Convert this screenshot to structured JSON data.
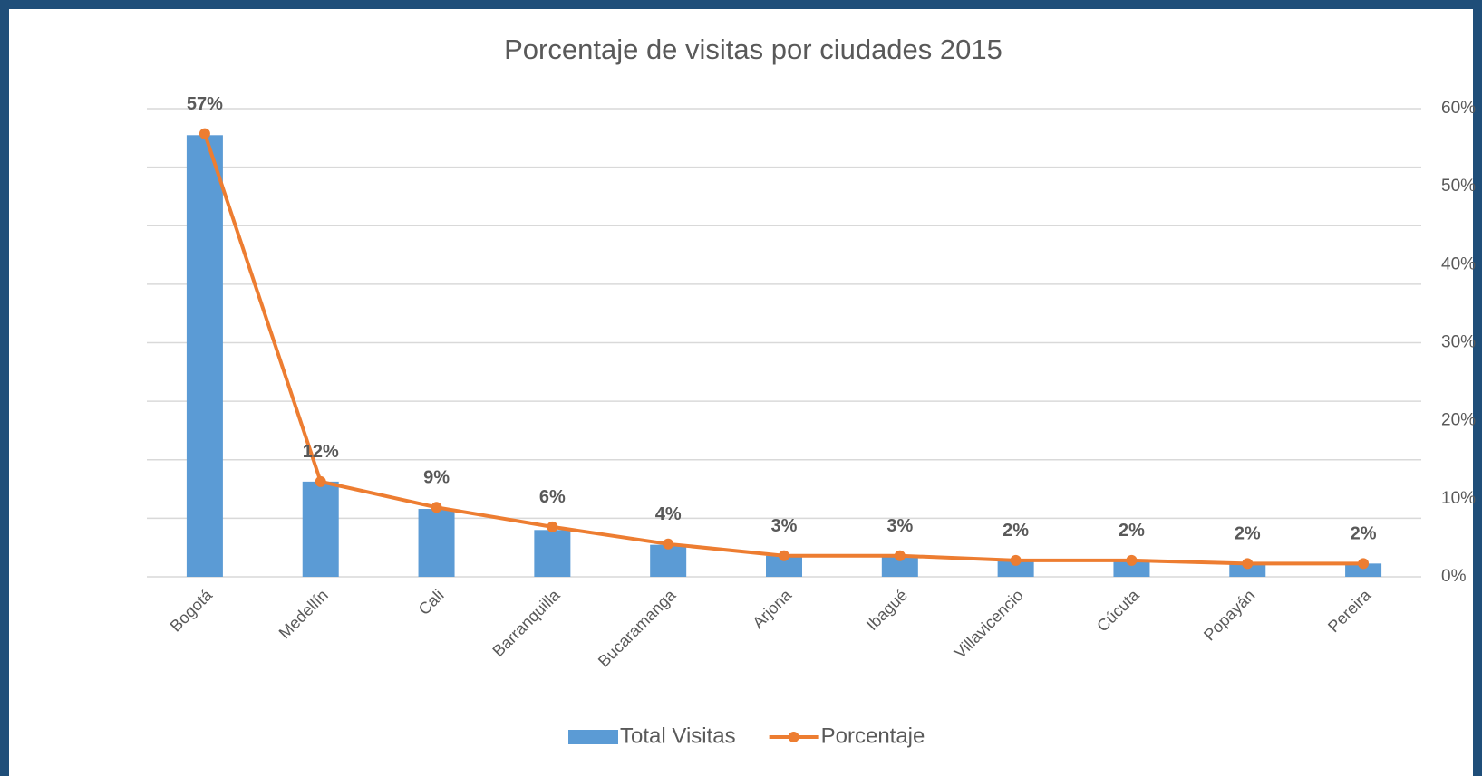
{
  "chart_data": {
    "type": "combo",
    "title": "Porcentaje de visitas por ciudades 2015",
    "categories": [
      "Bogotá",
      "Medellín",
      "Cali",
      "Barranquilla",
      "Bucaramanga",
      "Arjona",
      "Ibagué",
      "Villavicencio",
      "Cúcuta",
      "Popayán",
      "Pereira"
    ],
    "ylim": [
      0,
      60
    ],
    "ygrid": [
      0,
      7.5,
      15,
      22.5,
      30,
      37.5,
      45,
      52.5,
      60
    ],
    "y2lim": [
      0,
      60
    ],
    "y2ticks": [
      {
        "value": 0,
        "label": "0%"
      },
      {
        "value": 10,
        "label": "10%"
      },
      {
        "value": 20,
        "label": "20%"
      },
      {
        "value": 30,
        "label": "30%"
      },
      {
        "value": 40,
        "label": "40%"
      },
      {
        "value": 50,
        "label": "50%"
      },
      {
        "value": 60,
        "label": "60%"
      }
    ],
    "legend": "bottom",
    "series": [
      {
        "name": "Total Visitas",
        "type": "bar",
        "color": "#5b9bd5",
        "values": [
          56.6,
          12.2,
          8.7,
          6.0,
          4.1,
          2.7,
          2.7,
          2.1,
          2.1,
          1.7,
          1.7
        ]
      },
      {
        "name": "Porcentaje",
        "type": "line",
        "axis": "y2",
        "color": "#ed7d31",
        "values": [
          56.8,
          12.2,
          8.9,
          6.4,
          4.2,
          2.7,
          2.7,
          2.1,
          2.1,
          1.7,
          1.7
        ],
        "value_labels": [
          "57%",
          "12%",
          "9%",
          "6%",
          "4%",
          "3%",
          "3%",
          "2%",
          "2%",
          "2%",
          "2%"
        ]
      }
    ]
  }
}
